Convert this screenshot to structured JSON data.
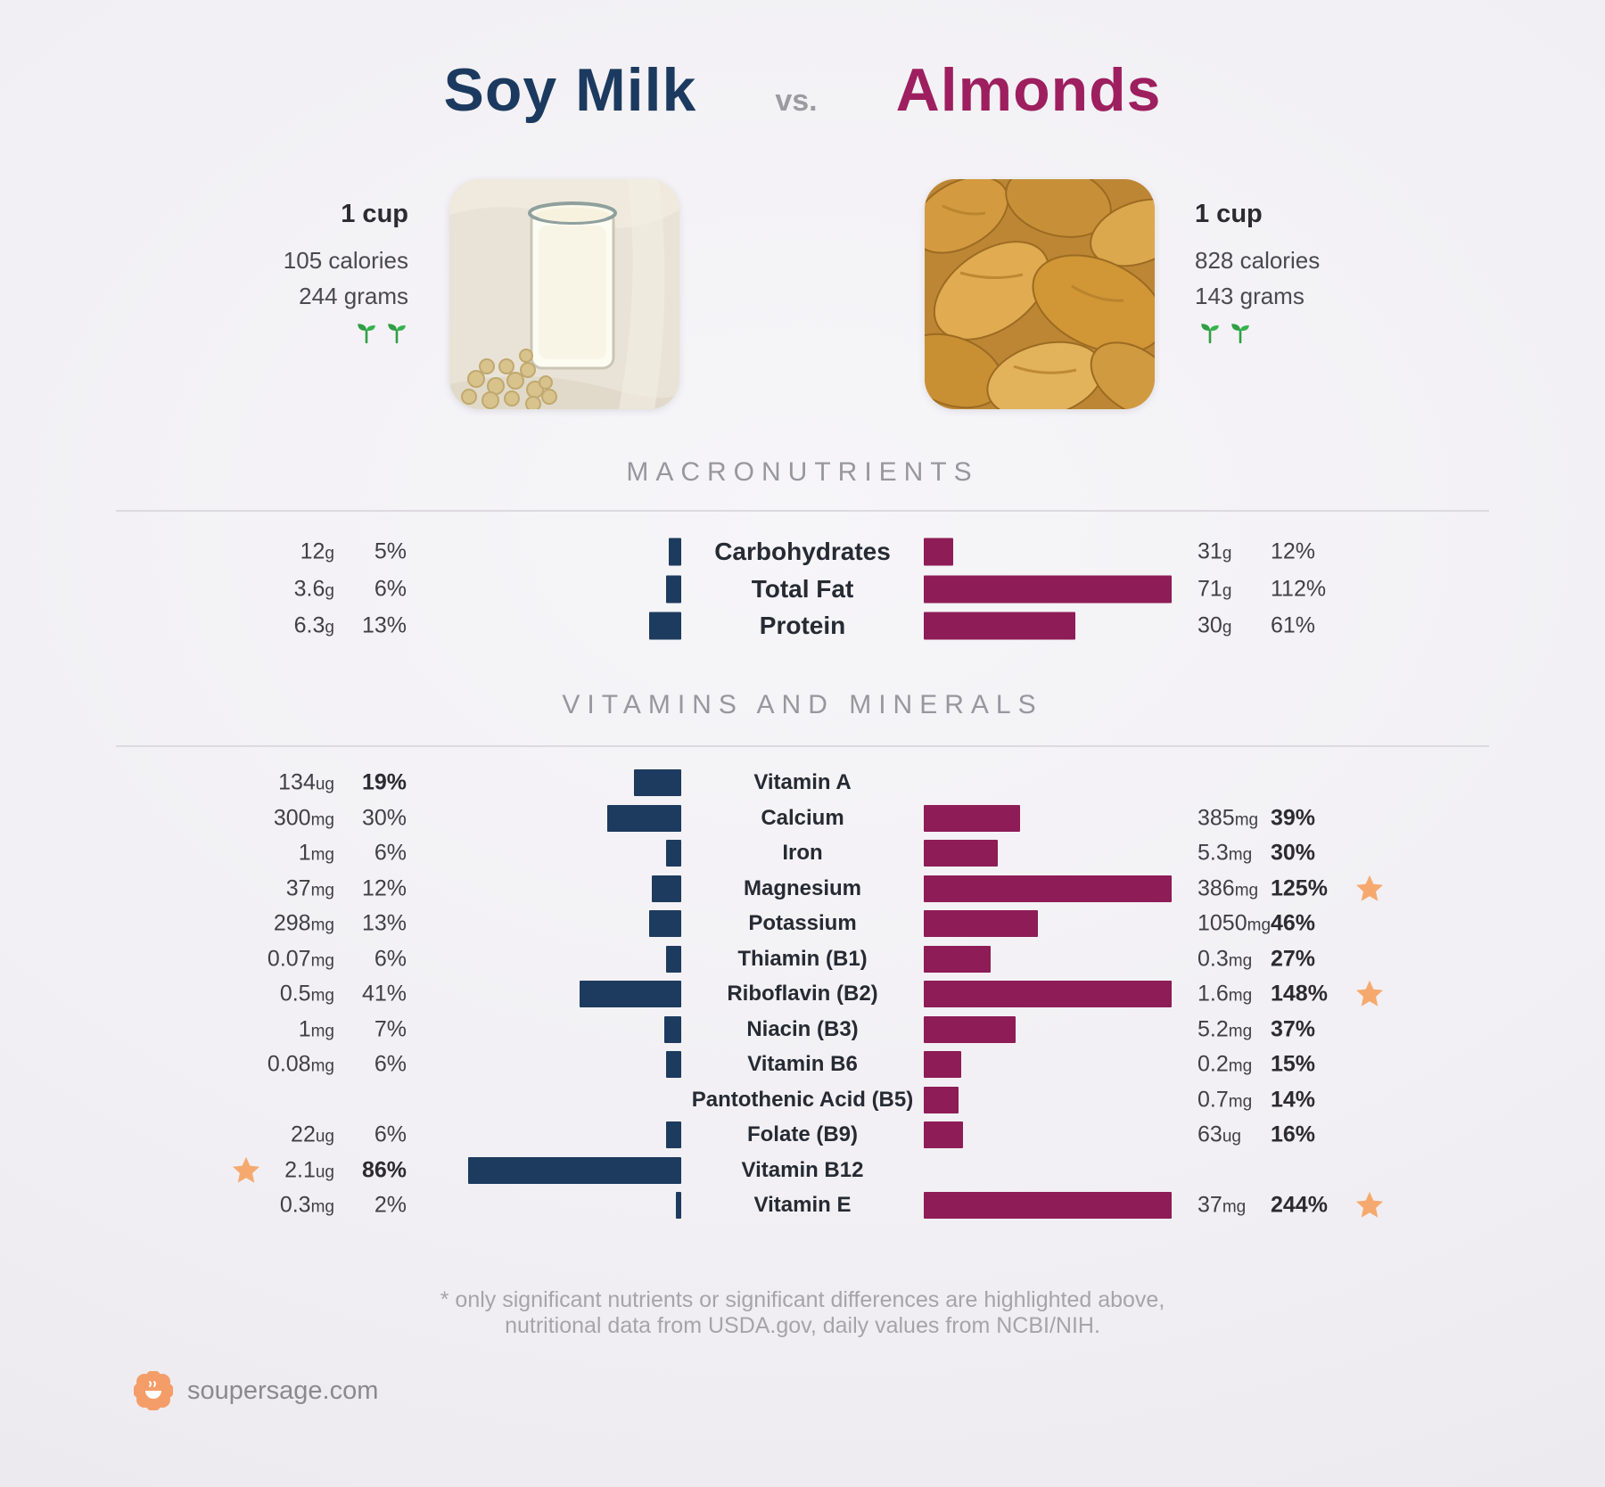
{
  "page": {
    "title_left": "Soy Milk",
    "title_vs": "vs.",
    "title_right": "Almonds",
    "footnote_line1": "* only significant nutrients or significant differences are highlighted above,",
    "footnote_line2": "nutritional data from USDA.gov, daily values from NCBI/NIH.",
    "brand": "soupersage.com"
  },
  "section_headers": {
    "macronutrients": "MACRONUTRIENTS",
    "vitamins": "VITAMINS AND MINERALS"
  },
  "left_food": {
    "name": "Soy Milk",
    "serving": "1 cup",
    "calories": "105 calories",
    "weight": "244 grams",
    "vegan_icon": "two-sprouts",
    "photo": "glass of soy milk with soybeans"
  },
  "right_food": {
    "name": "Almonds",
    "serving": "1 cup",
    "calories": "828 calories",
    "weight": "143 grams",
    "vegan_icon": "two-sprouts",
    "photo": "pile of almonds"
  },
  "colors": {
    "soy_bar": "#1d3b5e",
    "almond_bar": "#8e1c56",
    "title_left": "#1c3a5f",
    "title_right": "#9d1f5f",
    "star": "#f6a96f",
    "header_gray": "#98979d",
    "divider": "#dcdade",
    "background": "#f1eff3",
    "sprout_green": "#2f9e44",
    "logo_orange": "#f49d69"
  },
  "chart_data": {
    "type": "bar",
    "title": "Soy Milk vs. Almonds nutrient comparison",
    "unit": "percent of daily value",
    "bar_cap_pct": 100,
    "legend_position": "bars left = Soy Milk (navy), bars right = Almonds (maroon)",
    "series": [
      {
        "name": "Soy Milk",
        "serving": "1 cup, 105 calories, 244 grams",
        "color": "#1d3b5e",
        "side": "left"
      },
      {
        "name": "Almonds",
        "serving": "1 cup, 828 calories, 143 grams",
        "color": "#8e1c56",
        "side": "right"
      }
    ],
    "macronutrients": [
      {
        "label": "Carbohydrates",
        "soy": {
          "amount": "12",
          "unit": "g",
          "pct": 5
        },
        "almonds": {
          "amount": "31",
          "unit": "g",
          "pct": 12
        }
      },
      {
        "label": "Total Fat",
        "soy": {
          "amount": "3.6",
          "unit": "g",
          "pct": 6
        },
        "almonds": {
          "amount": "71",
          "unit": "g",
          "pct": 112
        }
      },
      {
        "label": "Protein",
        "soy": {
          "amount": "6.3",
          "unit": "g",
          "pct": 13
        },
        "almonds": {
          "amount": "30",
          "unit": "g",
          "pct": 61
        }
      }
    ],
    "vitamins_and_minerals": [
      {
        "label": "Vitamin A",
        "soy": {
          "amount": "134",
          "unit": "ug",
          "pct": 19,
          "bold": true
        }
      },
      {
        "label": "Calcium",
        "soy": {
          "amount": "300",
          "unit": "mg",
          "pct": 30
        },
        "almonds": {
          "amount": "385",
          "unit": "mg",
          "pct": 39,
          "bold": true
        }
      },
      {
        "label": "Iron",
        "soy": {
          "amount": "1",
          "unit": "mg",
          "pct": 6
        },
        "almonds": {
          "amount": "5.3",
          "unit": "mg",
          "pct": 30,
          "bold": true
        }
      },
      {
        "label": "Magnesium",
        "soy": {
          "amount": "37",
          "unit": "mg",
          "pct": 12
        },
        "almonds": {
          "amount": "386",
          "unit": "mg",
          "pct": 125,
          "bold": true,
          "star": true
        }
      },
      {
        "label": "Potassium",
        "soy": {
          "amount": "298",
          "unit": "mg",
          "pct": 13
        },
        "almonds": {
          "amount": "1050",
          "unit": "mg",
          "pct": 46,
          "bold": true
        }
      },
      {
        "label": "Thiamin (B1)",
        "soy": {
          "amount": "0.07",
          "unit": "mg",
          "pct": 6
        },
        "almonds": {
          "amount": "0.3",
          "unit": "mg",
          "pct": 27,
          "bold": true
        }
      },
      {
        "label": "Riboflavin (B2)",
        "soy": {
          "amount": "0.5",
          "unit": "mg",
          "pct": 41
        },
        "almonds": {
          "amount": "1.6",
          "unit": "mg",
          "pct": 148,
          "bold": true,
          "star": true
        }
      },
      {
        "label": "Niacin (B3)",
        "soy": {
          "amount": "1",
          "unit": "mg",
          "pct": 7
        },
        "almonds": {
          "amount": "5.2",
          "unit": "mg",
          "pct": 37,
          "bold": true
        }
      },
      {
        "label": "Vitamin B6",
        "soy": {
          "amount": "0.08",
          "unit": "mg",
          "pct": 6
        },
        "almonds": {
          "amount": "0.2",
          "unit": "mg",
          "pct": 15,
          "bold": true
        }
      },
      {
        "label": "Pantothenic Acid (B5)",
        "almonds": {
          "amount": "0.7",
          "unit": "mg",
          "pct": 14,
          "bold": true
        }
      },
      {
        "label": "Folate (B9)",
        "soy": {
          "amount": "22",
          "unit": "ug",
          "pct": 6
        },
        "almonds": {
          "amount": "63",
          "unit": "ug",
          "pct": 16,
          "bold": true
        }
      },
      {
        "label": "Vitamin B12",
        "soy": {
          "amount": "2.1",
          "unit": "ug",
          "pct": 86,
          "bold": true,
          "star": true
        }
      },
      {
        "label": "Vitamin E",
        "soy": {
          "amount": "0.3",
          "unit": "mg",
          "pct": 2
        },
        "almonds": {
          "amount": "37",
          "unit": "mg",
          "pct": 244,
          "bold": true,
          "star": true
        }
      }
    ]
  }
}
